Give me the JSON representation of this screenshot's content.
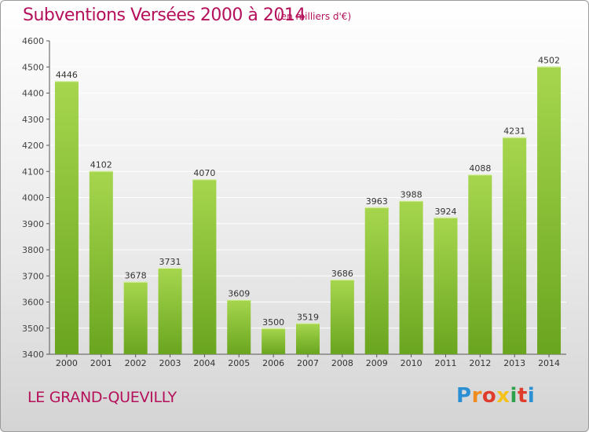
{
  "header": {
    "title": "Subventions Versées 2000 à 2014",
    "unit": "(en milliers d'€)"
  },
  "footer": {
    "commune": "LE GRAND-QUEVILLY",
    "logo_letters": [
      "P",
      "r",
      "o",
      "x",
      "i",
      "t",
      "i"
    ],
    "logo_colors": [
      "#2b8fd4",
      "#f08c1e",
      "#e03c2c",
      "#f5c21b",
      "#2ea24a",
      "#e03c2c",
      "#2b8fd4"
    ]
  },
  "colors": {
    "bar_light": "#a6d64e",
    "bar_dark": "#6aa51f",
    "title": "#b5105a",
    "grid": "#ffffff"
  },
  "chart_data": {
    "type": "bar",
    "categories": [
      "2000",
      "2001",
      "2002",
      "2003",
      "2004",
      "2005",
      "2006",
      "2007",
      "2008",
      "2009",
      "2010",
      "2011",
      "2012",
      "2013",
      "2014"
    ],
    "values": [
      4446,
      4102,
      3678,
      3731,
      4070,
      3609,
      3500,
      3519,
      3686,
      3963,
      3988,
      3924,
      4088,
      4231,
      4502
    ],
    "ylim": [
      3400,
      4600
    ],
    "yticks": [
      "3400",
      "3500",
      "3600",
      "3700",
      "3800",
      "3900",
      "4000",
      "4100",
      "4200",
      "4300",
      "4400",
      "4500",
      "4600"
    ],
    "grid": true,
    "data_labels": true
  }
}
